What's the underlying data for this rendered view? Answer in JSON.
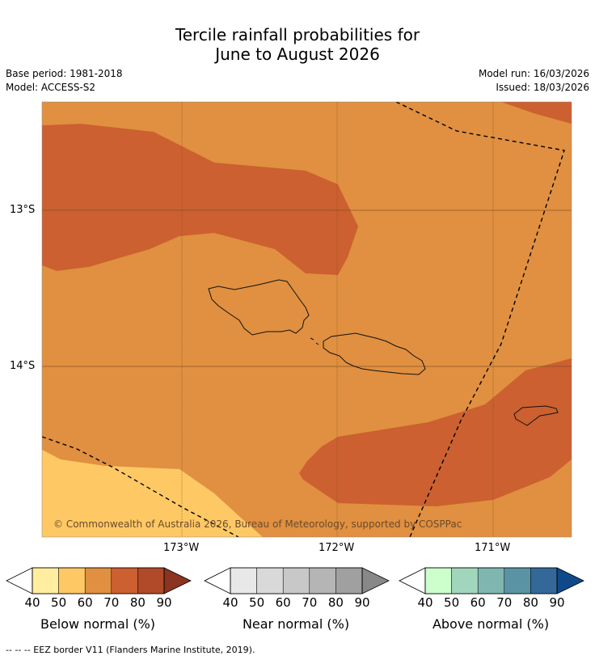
{
  "title": {
    "line1": "Tercile rainfall probabilities for",
    "line2": "June to August 2026"
  },
  "meta": {
    "base_period": "Base period: 1981-2018",
    "model": "Model: ACCESS-S2",
    "model_run": "Model run: 16/03/2026",
    "issued": "Issued: 18/03/2026"
  },
  "axes": {
    "lat_labels": [
      "13°S",
      "14°S"
    ],
    "lon_labels": [
      "173°W",
      "172°W",
      "171°W"
    ]
  },
  "copyright": "© Commonwealth of Australia 2026, Bureau of Meteorology, supported by COSPPac",
  "colorbars": [
    {
      "label": "Below normal (%)",
      "ticks": [
        "40",
        "50",
        "60",
        "70",
        "80",
        "90"
      ],
      "colors": [
        "#ffeda0",
        "#fec965",
        "#e09040",
        "#cc6030",
        "#b04a28",
        "#8c3420"
      ]
    },
    {
      "label": "Near normal (%)",
      "ticks": [
        "40",
        "50",
        "60",
        "70",
        "80",
        "90"
      ],
      "colors": [
        "#e8e8e8",
        "#d9d9d9",
        "#c8c8c8",
        "#b5b5b5",
        "#a0a0a0",
        "#888888"
      ]
    },
    {
      "label": "Above normal (%)",
      "ticks": [
        "40",
        "50",
        "60",
        "70",
        "80",
        "90"
      ],
      "colors": [
        "#ccffcc",
        "#a2d6bc",
        "#80b6b0",
        "#5a94a4",
        "#336899",
        "#0e4a8a"
      ]
    }
  ],
  "footer": "--  --  -- EEZ border V11 (Flanders Marine Institute, 2019).",
  "colors": {
    "below_50": "#fec965",
    "below_60": "#e09040",
    "below_70": "#cc6030"
  }
}
